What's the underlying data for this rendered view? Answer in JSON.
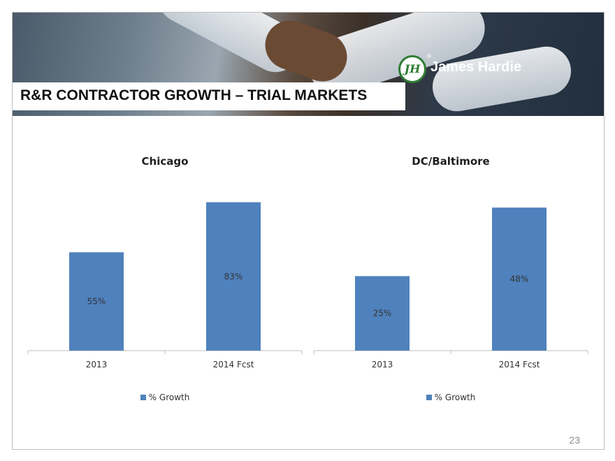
{
  "header": {
    "title": "R&R CONTRACTOR GROWTH – TRIAL MARKETS",
    "logo_text": "James Hardie",
    "logo_mark": "JH",
    "logo_registered": "®"
  },
  "page_number": "23",
  "colors": {
    "bar": "#4f81bd",
    "axis": "#bfbfbf",
    "logo_green": "#2e7d32"
  },
  "chart_data": [
    {
      "type": "bar",
      "title": "Chicago",
      "categories": [
        "2013",
        "2014 Fcst"
      ],
      "series": [
        {
          "name": "% Growth",
          "values": [
            55,
            83
          ],
          "labels": [
            "55%",
            "83%"
          ]
        }
      ],
      "ylim": [
        0,
        100
      ],
      "legend": "bottom",
      "grid": false
    },
    {
      "type": "bar",
      "title": "DC/Baltimore",
      "categories": [
        "2013",
        "2014 Fcst"
      ],
      "series": [
        {
          "name": "% Growth",
          "values": [
            25,
            48
          ],
          "labels": [
            "25%",
            "48%"
          ]
        }
      ],
      "ylim": [
        0,
        60
      ],
      "legend": "bottom",
      "grid": false
    }
  ]
}
